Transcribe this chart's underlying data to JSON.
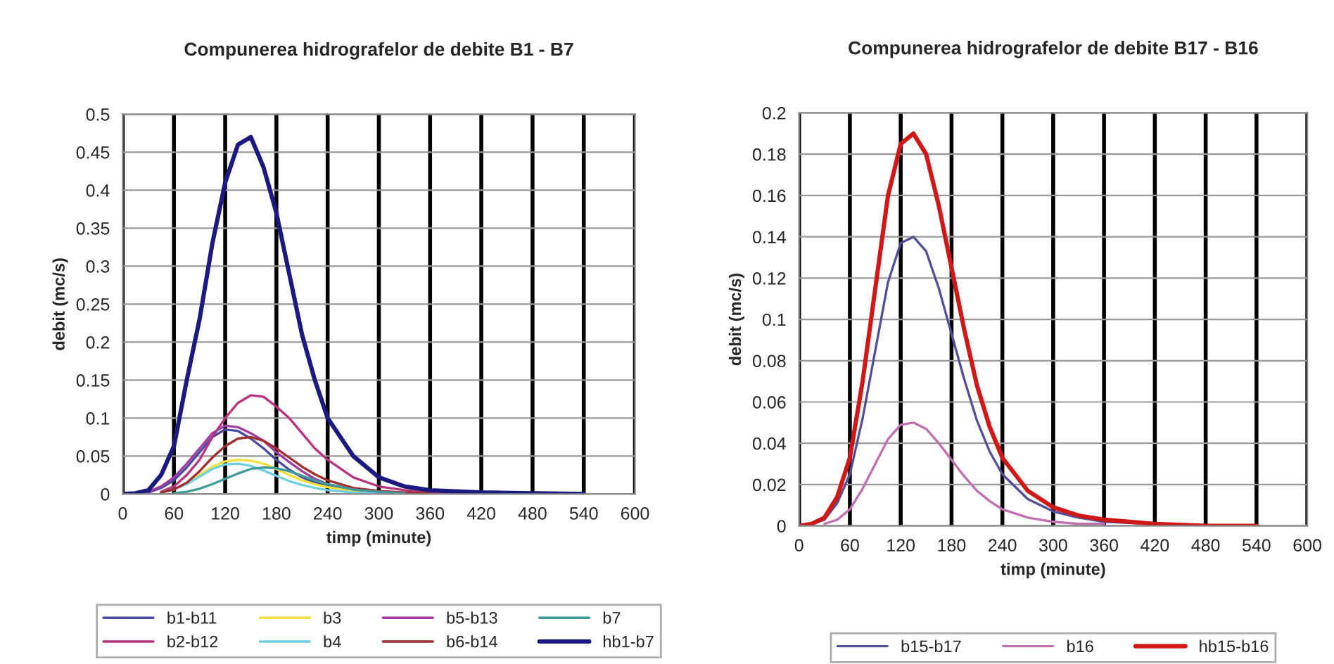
{
  "chart_data": [
    {
      "type": "line",
      "title": "Compunerea hidrografelor de debite B1 - B7",
      "xlabel": "timp (minute)",
      "ylabel": "debit (mc/s)",
      "x": [
        0,
        15,
        30,
        45,
        60,
        75,
        90,
        105,
        120,
        135,
        150,
        165,
        180,
        195,
        210,
        225,
        240,
        270,
        300,
        330,
        360,
        420,
        480,
        540
      ],
      "xlim": [
        0,
        600
      ],
      "xticks": [
        0,
        60,
        120,
        180,
        240,
        300,
        360,
        420,
        480,
        540,
        600
      ],
      "ylim": [
        0,
        0.5
      ],
      "yticks": [
        0,
        0.05,
        0.1,
        0.15,
        0.2,
        0.25,
        0.3,
        0.35,
        0.4,
        0.45,
        0.5
      ],
      "grid": true,
      "legend": "bottom",
      "marker": "none",
      "line_style": "solid",
      "series": [
        {
          "name": "b1-b11",
          "color": "#4a4aa0",
          "values": [
            null,
            null,
            0.002,
            0.008,
            0.018,
            0.035,
            0.055,
            0.075,
            0.085,
            0.083,
            0.073,
            0.06,
            0.045,
            0.032,
            0.022,
            0.015,
            0.01,
            0.005,
            0.002,
            0.001,
            null,
            null,
            null,
            null
          ]
        },
        {
          "name": "b2-b12",
          "color": "#b8347e",
          "values": [
            null,
            null,
            null,
            0.003,
            0.01,
            0.025,
            0.045,
            0.075,
            0.1,
            0.12,
            0.13,
            0.128,
            0.115,
            0.1,
            0.08,
            0.06,
            0.045,
            0.022,
            0.01,
            0.005,
            0.002,
            0.001,
            null,
            null
          ]
        },
        {
          "name": "b3",
          "color": "#f0e040",
          "values": [
            null,
            null,
            null,
            null,
            0.006,
            0.014,
            0.025,
            0.036,
            0.043,
            0.045,
            0.044,
            0.04,
            0.033,
            0.025,
            0.018,
            0.013,
            0.009,
            0.004,
            0.002,
            null,
            null,
            null,
            null,
            null
          ]
        },
        {
          "name": "b4",
          "color": "#70d0e0",
          "values": [
            null,
            null,
            null,
            0.002,
            0.006,
            0.013,
            0.023,
            0.033,
            0.039,
            0.04,
            0.037,
            0.031,
            0.024,
            0.017,
            0.012,
            0.008,
            0.005,
            0.002,
            0.001,
            0,
            null,
            null,
            null,
            null
          ]
        },
        {
          "name": "b5-b13",
          "color": "#a03ca0",
          "values": [
            null,
            null,
            0.003,
            0.01,
            0.022,
            0.04,
            0.06,
            0.08,
            0.09,
            0.088,
            0.08,
            0.07,
            0.055,
            0.042,
            0.03,
            0.02,
            0.013,
            0.006,
            0.003,
            0.001,
            null,
            null,
            null,
            null
          ]
        },
        {
          "name": "b6-b14",
          "color": "#a03030",
          "values": [
            null,
            null,
            null,
            0.002,
            0.006,
            0.015,
            0.03,
            0.048,
            0.063,
            0.073,
            0.075,
            0.07,
            0.06,
            0.048,
            0.036,
            0.026,
            0.018,
            0.008,
            0.004,
            0.002,
            0.001,
            null,
            null,
            null
          ]
        },
        {
          "name": "b7",
          "color": "#409a9a",
          "values": [
            null,
            null,
            null,
            null,
            0.001,
            0.003,
            0.007,
            0.013,
            0.02,
            0.027,
            0.033,
            0.035,
            0.034,
            0.03,
            0.024,
            0.018,
            0.013,
            0.006,
            0.003,
            0.001,
            null,
            null,
            null,
            null
          ]
        },
        {
          "name": "hb1-b7",
          "color": "#1a1a80",
          "values": [
            0,
            0.001,
            0.005,
            0.025,
            0.063,
            0.15,
            0.23,
            0.33,
            0.41,
            0.46,
            0.47,
            0.43,
            0.37,
            0.29,
            0.21,
            0.15,
            0.1,
            0.05,
            0.022,
            0.01,
            0.005,
            0.002,
            0.001,
            0
          ]
        }
      ]
    },
    {
      "type": "line",
      "title": "Compunerea hidrografelor de debite B17 - B16",
      "xlabel": "timp (minute)",
      "ylabel": "debit (mc/s)",
      "x": [
        0,
        15,
        30,
        45,
        60,
        75,
        90,
        105,
        120,
        135,
        150,
        165,
        180,
        195,
        210,
        225,
        240,
        270,
        300,
        330,
        360,
        420,
        480,
        540
      ],
      "xlim": [
        0,
        600
      ],
      "xticks": [
        0,
        60,
        120,
        180,
        240,
        300,
        360,
        420,
        480,
        540,
        600
      ],
      "ylim": [
        0,
        0.2
      ],
      "yticks": [
        0,
        0.02,
        0.04,
        0.06,
        0.08,
        0.1,
        0.12,
        0.14,
        0.16,
        0.18,
        0.2
      ],
      "grid": true,
      "legend": "bottom",
      "marker": "none",
      "line_style": "solid",
      "series": [
        {
          "name": "b15-b17",
          "color": "#50509a",
          "values": [
            null,
            0.001,
            0.003,
            0.011,
            0.025,
            0.052,
            0.085,
            0.118,
            0.137,
            0.14,
            0.133,
            0.115,
            0.093,
            0.071,
            0.051,
            0.036,
            0.025,
            0.013,
            0.007,
            0.004,
            0.002,
            0.001,
            null,
            null
          ]
        },
        {
          "name": "b16",
          "color": "#c070b0",
          "values": [
            null,
            null,
            0.001,
            0.003,
            0.008,
            0.018,
            0.03,
            0.042,
            0.049,
            0.05,
            0.047,
            0.04,
            0.032,
            0.024,
            0.017,
            0.012,
            0.008,
            0.004,
            0.002,
            0.001,
            0.001,
            null,
            null,
            null
          ]
        },
        {
          "name": "hb15-b16",
          "color": "#d01818",
          "values": [
            0,
            0.001,
            0.004,
            0.014,
            0.033,
            0.07,
            0.115,
            0.16,
            0.185,
            0.19,
            0.18,
            0.155,
            0.125,
            0.095,
            0.068,
            0.048,
            0.033,
            0.017,
            0.009,
            0.005,
            0.003,
            0.001,
            0,
            0
          ]
        }
      ]
    }
  ]
}
